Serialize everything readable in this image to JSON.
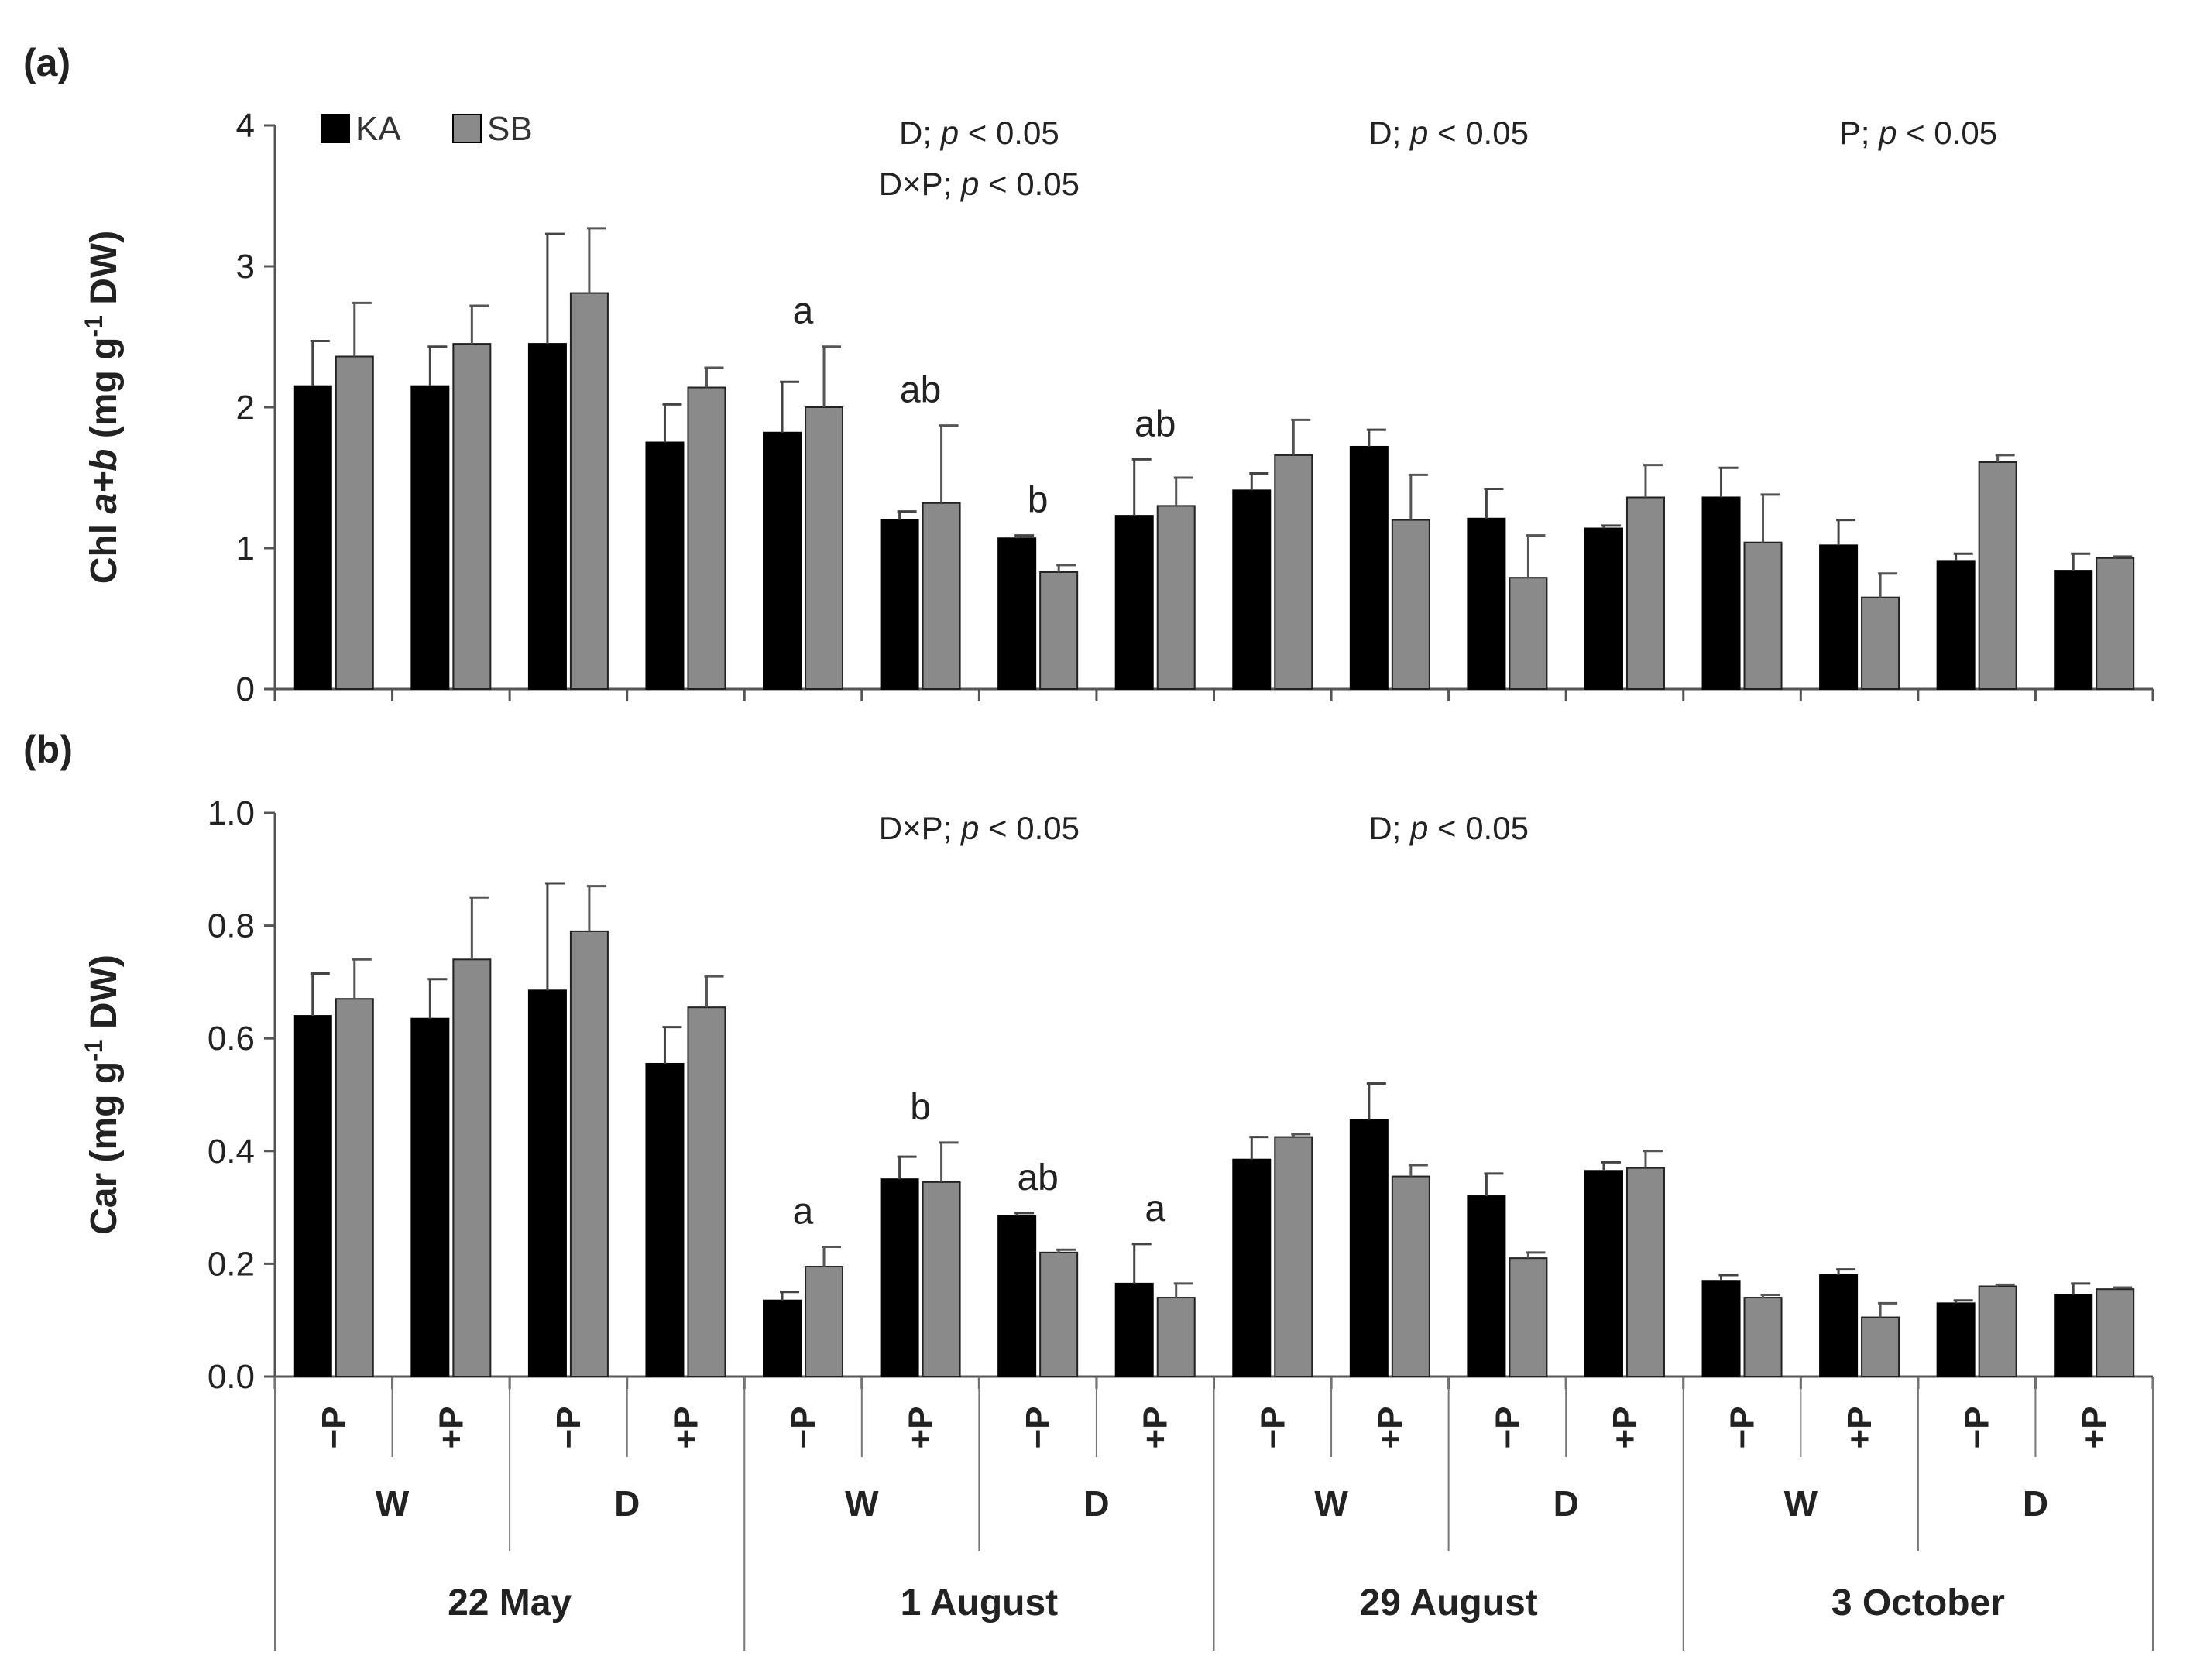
{
  "chart_data": [
    {
      "type": "bar",
      "panel_label": "(a)",
      "ylabel_parts": [
        "Chl ",
        "a+b",
        " (mg g",
        "-1",
        " DW)"
      ],
      "ylim": [
        0,
        4
      ],
      "yticks": [
        "0",
        "1",
        "2",
        "3",
        "4"
      ],
      "categories": [
        "−P",
        "+P",
        "−P",
        "+P",
        "−P",
        "+P",
        "−P",
        "+P",
        "−P",
        "+P",
        "−P",
        "+P",
        "−P",
        "+P",
        "−P",
        "+P"
      ],
      "series": [
        {
          "name": "KA",
          "color": "#000000",
          "values": [
            2.15,
            2.15,
            2.45,
            1.75,
            1.82,
            1.2,
            1.07,
            1.23,
            1.41,
            1.72,
            1.21,
            1.14,
            1.36,
            1.02,
            0.91,
            0.84
          ],
          "errors": [
            0.32,
            0.28,
            0.78,
            0.27,
            0.36,
            0.06,
            0.02,
            0.4,
            0.12,
            0.12,
            0.21,
            0.02,
            0.21,
            0.18,
            0.05,
            0.12
          ]
        },
        {
          "name": "SB",
          "color": "#8a8a8a",
          "values": [
            2.36,
            2.45,
            2.81,
            2.14,
            2.0,
            1.32,
            0.83,
            1.3,
            1.66,
            1.2,
            0.79,
            1.36,
            1.04,
            0.65,
            1.61,
            0.93
          ]
        },
        {
          "name": "SB_err",
          "color": "#8a8a8a",
          "values": [
            0.38,
            0.27,
            0.46,
            0.14,
            0.43,
            0.55,
            0.05,
            0.2,
            0.25,
            0.32,
            0.3,
            0.23,
            0.34,
            0.17,
            0.05,
            0.01
          ]
        }
      ],
      "significance_letters": [
        {
          "group": 4,
          "text": "a"
        },
        {
          "group": 5,
          "text": "ab"
        },
        {
          "group": 6,
          "text": "b"
        },
        {
          "group": 7,
          "text": "ab"
        }
      ],
      "stat_annotations": [
        {
          "lines": [
            [
              "D; ",
              "p",
              " < 0.05"
            ],
            [
              "D×P; ",
              "p",
              " < 0.05"
            ]
          ],
          "period": 1
        },
        {
          "lines": [
            [
              "D; ",
              "p",
              " < 0.05"
            ]
          ],
          "period": 2
        },
        {
          "lines": [
            [
              "P; ",
              "p",
              " < 0.05"
            ]
          ],
          "period": 3
        }
      ]
    },
    {
      "type": "bar",
      "panel_label": "(b)",
      "ylabel_parts": [
        "Car (mg g",
        "-1",
        " DW)"
      ],
      "ylim": [
        0,
        1.0
      ],
      "yticks": [
        "0.0",
        "0.2",
        "0.4",
        "0.6",
        "0.8",
        "1.0"
      ],
      "categories": [
        "−P",
        "+P",
        "−P",
        "+P",
        "−P",
        "+P",
        "−P",
        "+P",
        "−P",
        "+P",
        "−P",
        "+P",
        "−P",
        "+P",
        "−P",
        "+P"
      ],
      "series": [
        {
          "name": "KA",
          "color": "#000000",
          "values": [
            0.64,
            0.635,
            0.685,
            0.555,
            0.135,
            0.35,
            0.285,
            0.165,
            0.385,
            0.455,
            0.32,
            0.365,
            0.17,
            0.18,
            0.13,
            0.145
          ],
          "errors": [
            0.075,
            0.07,
            0.19,
            0.065,
            0.015,
            0.04,
            0.005,
            0.07,
            0.04,
            0.065,
            0.04,
            0.015,
            0.01,
            0.01,
            0.005,
            0.02
          ]
        },
        {
          "name": "SB",
          "color": "#8a8a8a",
          "values": [
            0.67,
            0.74,
            0.79,
            0.655,
            0.195,
            0.345,
            0.22,
            0.14,
            0.425,
            0.355,
            0.21,
            0.37,
            0.14,
            0.105,
            0.16,
            0.155
          ]
        },
        {
          "name": "SB_err",
          "color": "#8a8a8a",
          "values": [
            0.07,
            0.11,
            0.08,
            0.055,
            0.035,
            0.07,
            0.005,
            0.025,
            0.005,
            0.02,
            0.01,
            0.03,
            0.005,
            0.025,
            0.003,
            0.003
          ]
        }
      ],
      "significance_letters": [
        {
          "group": 4,
          "text": "a"
        },
        {
          "group": 5,
          "text": "b"
        },
        {
          "group": 6,
          "text": "ab"
        },
        {
          "group": 7,
          "text": "a"
        }
      ],
      "stat_annotations": [
        {
          "lines": [
            [
              "D×P; ",
              "p",
              " < 0.05"
            ]
          ],
          "period": 1
        },
        {
          "lines": [
            [
              "D; ",
              "p",
              " < 0.05"
            ]
          ],
          "period": 2
        }
      ]
    }
  ],
  "legend": [
    {
      "label": "KA",
      "color": "#000000"
    },
    {
      "label": "SB",
      "color": "#8a8a8a"
    }
  ],
  "x_groups_level2": [
    "W",
    "D",
    "W",
    "D",
    "W",
    "D",
    "W",
    "D"
  ],
  "x_groups_level3": [
    "22 May",
    "1 August",
    "29 August",
    "3 October"
  ]
}
